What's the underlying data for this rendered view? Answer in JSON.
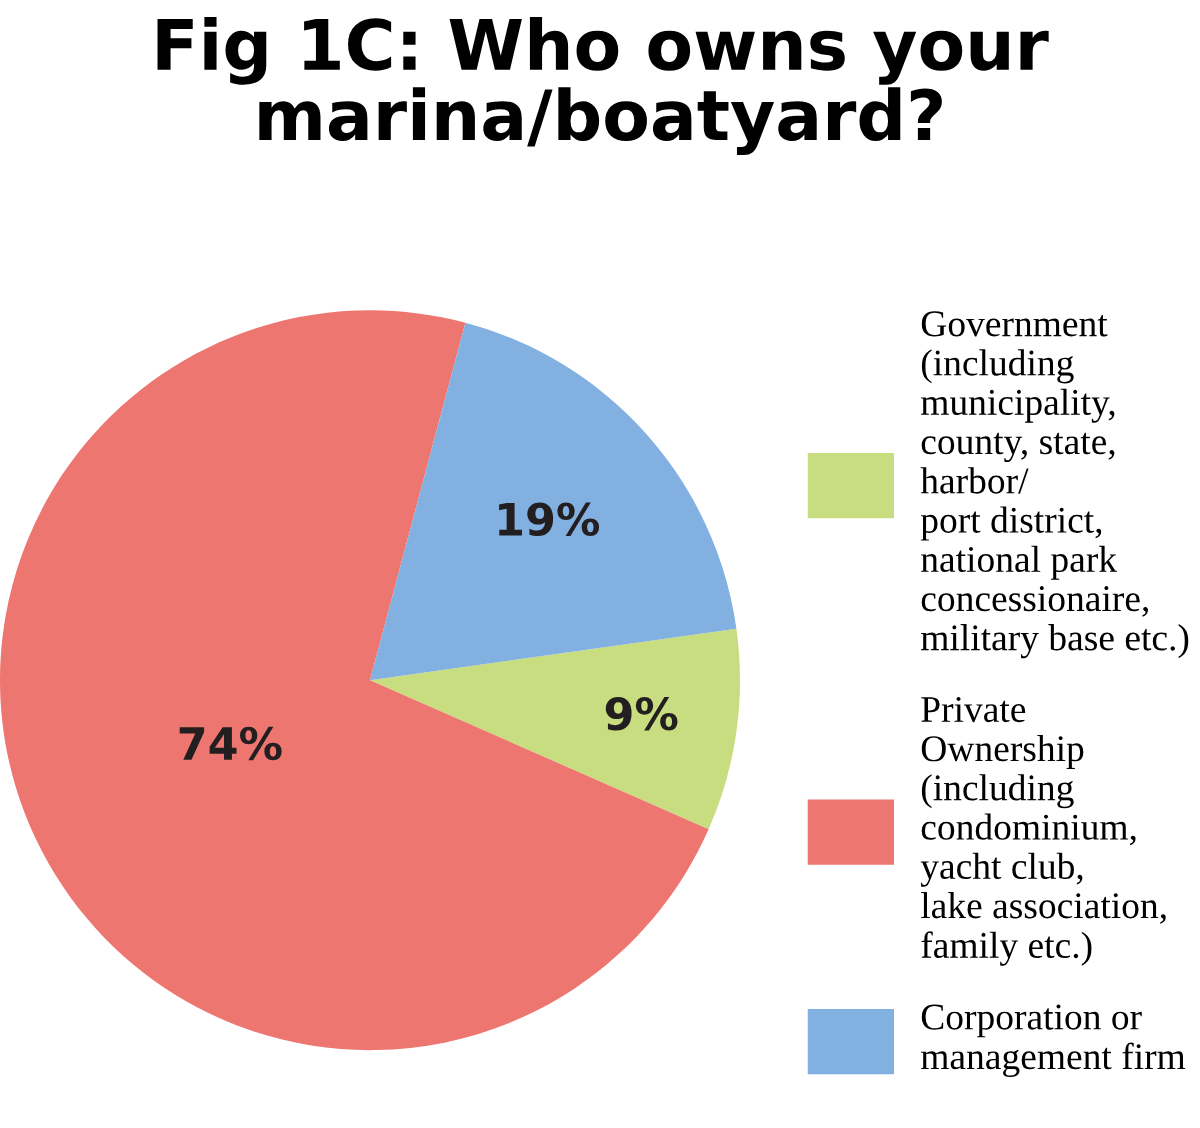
{
  "chart_data": {
    "type": "pie",
    "title": "Fig 1C: Who owns your\nmarina/boatyard?",
    "categories": [
      "Government\n(including\nmunicipality,\ncounty, state,\nharbor/\nport district,\nnational park\nconcessionaire,\nmilitary base etc.)",
      "Private\nOwnership\n(including\ncondominium,\nyacht club,\nlake association,\nfamily etc.)",
      "Corporation or\nmanagement firm"
    ],
    "values": [
      9,
      74,
      19
    ],
    "colors": [
      "#c8dc80",
      "#ee7670",
      "#82b0e0"
    ],
    "value_labels": [
      "9%",
      "74%",
      "19%"
    ],
    "legend": "right"
  }
}
